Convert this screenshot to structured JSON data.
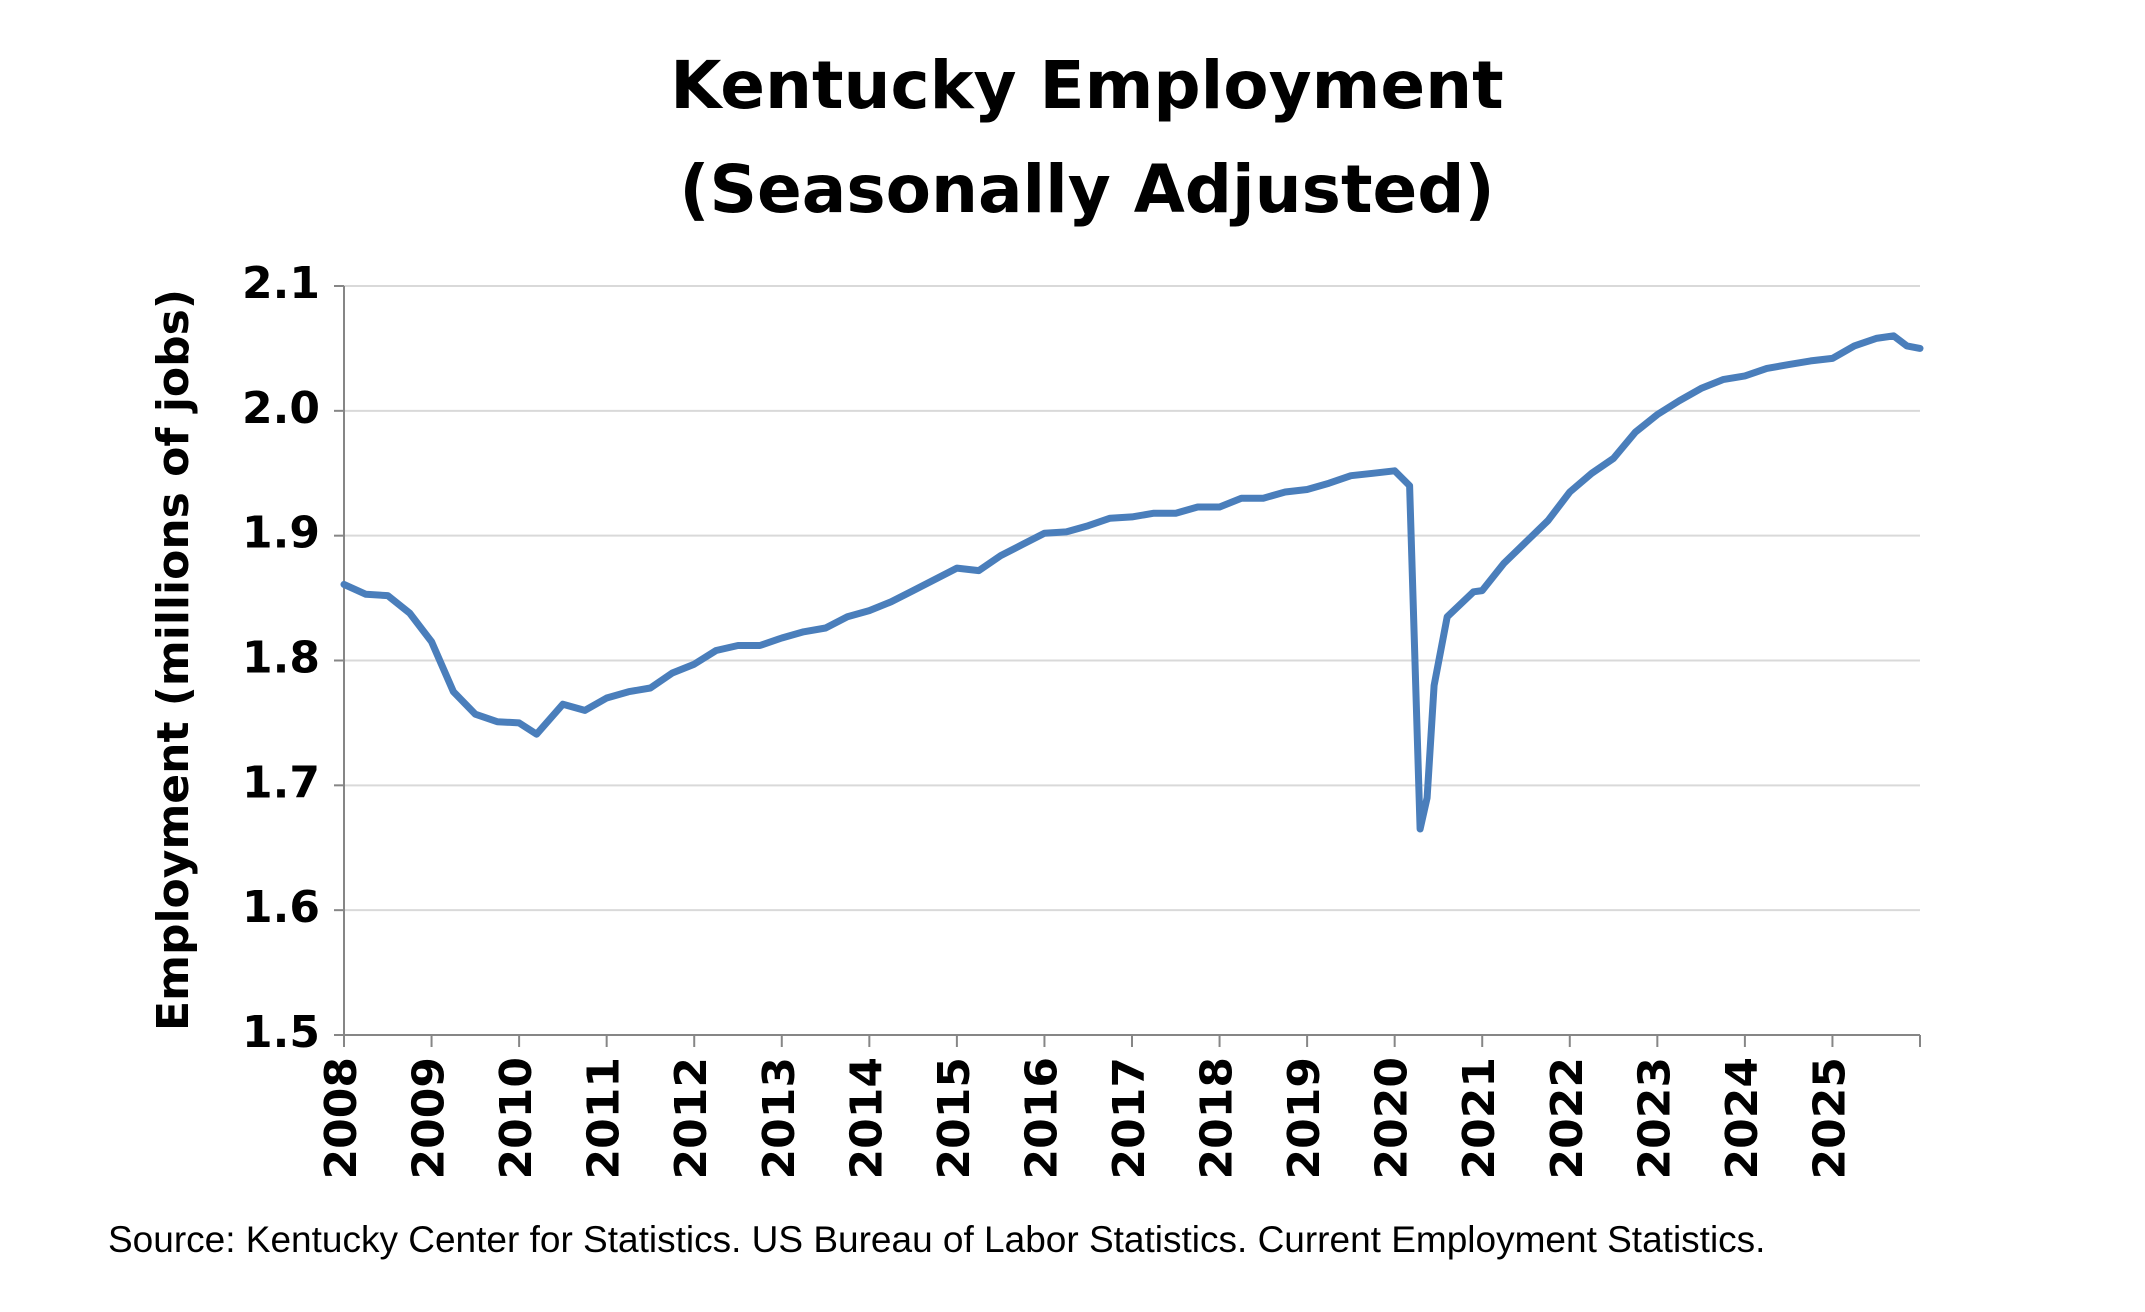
{
  "chart_data": {
    "type": "line",
    "title": "Kentucky Employment",
    "subtitle": "(Seasonally Adjusted)",
    "y_label": "Employment (millions of jobs)",
    "source": "Source: Kentucky Center for Statistics. US Bureau of Labor Statistics. Current Employment Statistics.",
    "x": [
      2008.0,
      2008.25,
      2008.5,
      2008.75,
      2009.0,
      2009.25,
      2009.5,
      2009.75,
      2010.0,
      2010.2,
      2010.5,
      2010.75,
      2011.0,
      2011.25,
      2011.5,
      2011.75,
      2012.0,
      2012.25,
      2012.5,
      2012.75,
      2013.0,
      2013.25,
      2013.5,
      2013.75,
      2014.0,
      2014.25,
      2014.5,
      2014.75,
      2015.0,
      2015.25,
      2015.5,
      2015.75,
      2016.0,
      2016.25,
      2016.5,
      2016.75,
      2017.0,
      2017.25,
      2017.5,
      2017.75,
      2018.0,
      2018.25,
      2018.5,
      2018.75,
      2019.0,
      2019.25,
      2019.5,
      2019.75,
      2020.0,
      2020.17,
      2020.29,
      2020.37,
      2020.45,
      2020.6,
      2020.9,
      2021.0,
      2021.25,
      2021.5,
      2021.75,
      2022.0,
      2022.25,
      2022.5,
      2022.75,
      2023.0,
      2023.25,
      2023.5,
      2023.75,
      2024.0,
      2024.25,
      2024.5,
      2024.75,
      2025.0,
      2025.25,
      2025.5,
      2025.7,
      2025.85,
      2026.0
    ],
    "series": [
      {
        "name": "Employment",
        "color": "#4a7ebb",
        "values": [
          1.861,
          1.853,
          1.852,
          1.838,
          1.815,
          1.775,
          1.757,
          1.751,
          1.75,
          1.741,
          1.765,
          1.76,
          1.77,
          1.775,
          1.778,
          1.79,
          1.797,
          1.808,
          1.812,
          1.812,
          1.818,
          1.823,
          1.826,
          1.835,
          1.84,
          1.847,
          1.856,
          1.865,
          1.874,
          1.872,
          1.884,
          1.893,
          1.902,
          1.903,
          1.908,
          1.914,
          1.915,
          1.918,
          1.918,
          1.923,
          1.923,
          1.93,
          1.93,
          1.935,
          1.937,
          1.942,
          1.948,
          1.95,
          1.952,
          1.94,
          1.665,
          1.69,
          1.78,
          1.835,
          1.855,
          1.856,
          1.878,
          1.895,
          1.912,
          1.935,
          1.95,
          1.962,
          1.983,
          1.997,
          2.008,
          2.018,
          2.025,
          2.028,
          2.034,
          2.037,
          2.04,
          2.042,
          2.052,
          2.058,
          2.06,
          2.052,
          2.05
        ]
      }
    ],
    "xlim": [
      2008,
      2026
    ],
    "xticks": [
      2008,
      2009,
      2010,
      2011,
      2012,
      2013,
      2014,
      2015,
      2016,
      2017,
      2018,
      2019,
      2020,
      2021,
      2022,
      2023,
      2024,
      2025
    ],
    "ylim": [
      1.5,
      2.1
    ],
    "yticks": [
      1.5,
      1.6,
      1.7,
      1.8,
      1.9,
      {
        "value": 2,
        "label": "2.0"
      },
      2.1
    ],
    "grid": true
  }
}
